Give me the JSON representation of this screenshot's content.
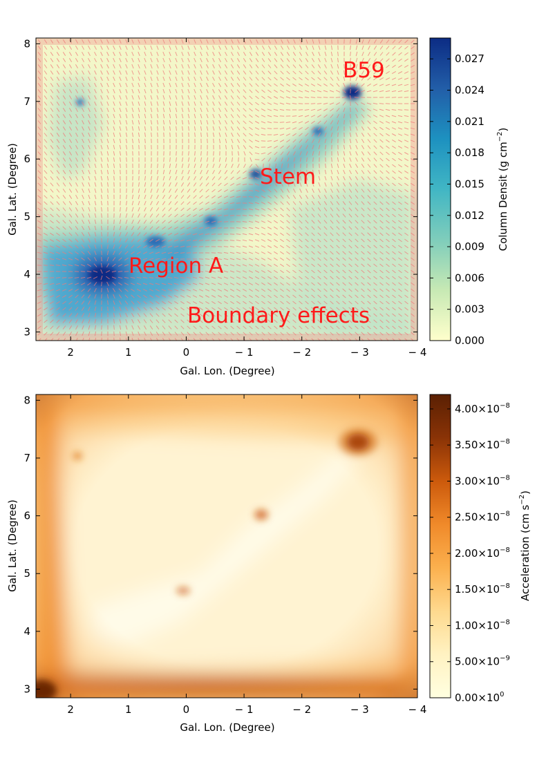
{
  "chart_data": [
    {
      "type": "heatmap",
      "title": "",
      "xlabel": "Gal. Lon. (Degree)",
      "ylabel": "Gal. Lat. (Degree)",
      "xlim": [
        2.6,
        -4.0
      ],
      "ylim": [
        2.85,
        8.1
      ],
      "x_ticks": [
        2,
        1,
        0,
        -1,
        -2,
        -3,
        -4
      ],
      "x_tick_labels": [
        "2",
        "1",
        "0",
        "− 1",
        "− 2",
        "− 3",
        "− 4"
      ],
      "y_ticks": [
        3,
        4,
        5,
        6,
        7,
        8
      ],
      "y_tick_labels": [
        "3",
        "4",
        "5",
        "6",
        "7",
        "8"
      ],
      "overlay": "vector field (acceleration direction arrows, red/pink)",
      "colormap": [
        "#ffffcc",
        "#c7e9b4",
        "#7fcdbb",
        "#41b6c4",
        "#1d91c0",
        "#225ea8",
        "#0c2c84"
      ],
      "colorbar": {
        "label": "Column Densit (g cm^-2)",
        "label_main": "Column Densit",
        "label_unit_pre": "(g cm",
        "label_unit_exp": "−2",
        "label_unit_post": ")",
        "range": [
          0.0,
          0.029
        ],
        "ticks": [
          0.0,
          0.003,
          0.006,
          0.009,
          0.012,
          0.015,
          0.018,
          0.021,
          0.024,
          0.027
        ],
        "tick_labels": [
          "0.000",
          "0.003",
          "0.006",
          "0.009",
          "0.012",
          "0.015",
          "0.018",
          "0.021",
          "0.024",
          "0.027"
        ]
      },
      "annotations": [
        {
          "text": "B59",
          "x": -2.78,
          "y": 7.35
        },
        {
          "text": "Stem",
          "x": -1.3,
          "y": 5.6
        },
        {
          "text": "Region A",
          "x": 0.97,
          "y": 4.0
        },
        {
          "text": "Boundary effects",
          "x": 0.07,
          "y": 3.2
        }
      ],
      "features": [
        {
          "name": "B59 core",
          "lon": -2.85,
          "lat": 7.1
        },
        {
          "name": "Region A core",
          "lon": 1.45,
          "lat": 4.0
        }
      ]
    },
    {
      "type": "heatmap",
      "title": "",
      "xlabel": "Gal. Lon. (Degree)",
      "ylabel": "Gal. Lat. (Degree)",
      "xlim": [
        2.6,
        -4.0
      ],
      "ylim": [
        2.85,
        8.1
      ],
      "x_ticks": [
        2,
        1,
        0,
        -1,
        -2,
        -3,
        -4
      ],
      "x_tick_labels": [
        "2",
        "1",
        "0",
        "− 1",
        "− 2",
        "− 3",
        "− 4"
      ],
      "y_ticks": [
        3,
        4,
        5,
        6,
        7,
        8
      ],
      "y_tick_labels": [
        "3",
        "4",
        "5",
        "6",
        "7",
        "8"
      ],
      "colormap": [
        "#ffffe0",
        "#fff2c2",
        "#fed98e",
        "#fbb04e",
        "#f08a2a",
        "#cc5a0c",
        "#8a3306",
        "#5a2003"
      ],
      "colorbar": {
        "label": "Acceleration (cm s^-2)",
        "label_main": "Acceleration",
        "label_unit_pre": "(cm  s",
        "label_unit_exp": "−2",
        "label_unit_post": ")",
        "range": [
          0.0,
          4.2e-08
        ],
        "ticks": [
          0.0,
          5e-09,
          1e-08,
          1.5e-08,
          2e-08,
          2.5e-08,
          3e-08,
          3.5e-08,
          4e-08
        ],
        "tick_mantissas": [
          "0.00",
          "5.00",
          "1.00",
          "1.50",
          "2.00",
          "2.50",
          "3.00",
          "3.50",
          "4.00"
        ],
        "tick_times": [
          "×",
          "×",
          "×",
          "×",
          "×",
          "×",
          "×",
          "×",
          "×"
        ],
        "tick_bases": [
          "10",
          "10",
          "10",
          "10",
          "10",
          "10",
          "10",
          "10",
          "10"
        ],
        "tick_exponents": [
          "0",
          "−9",
          "−8",
          "−8",
          "−8",
          "−8",
          "−8",
          "−8",
          "−8"
        ]
      }
    }
  ]
}
